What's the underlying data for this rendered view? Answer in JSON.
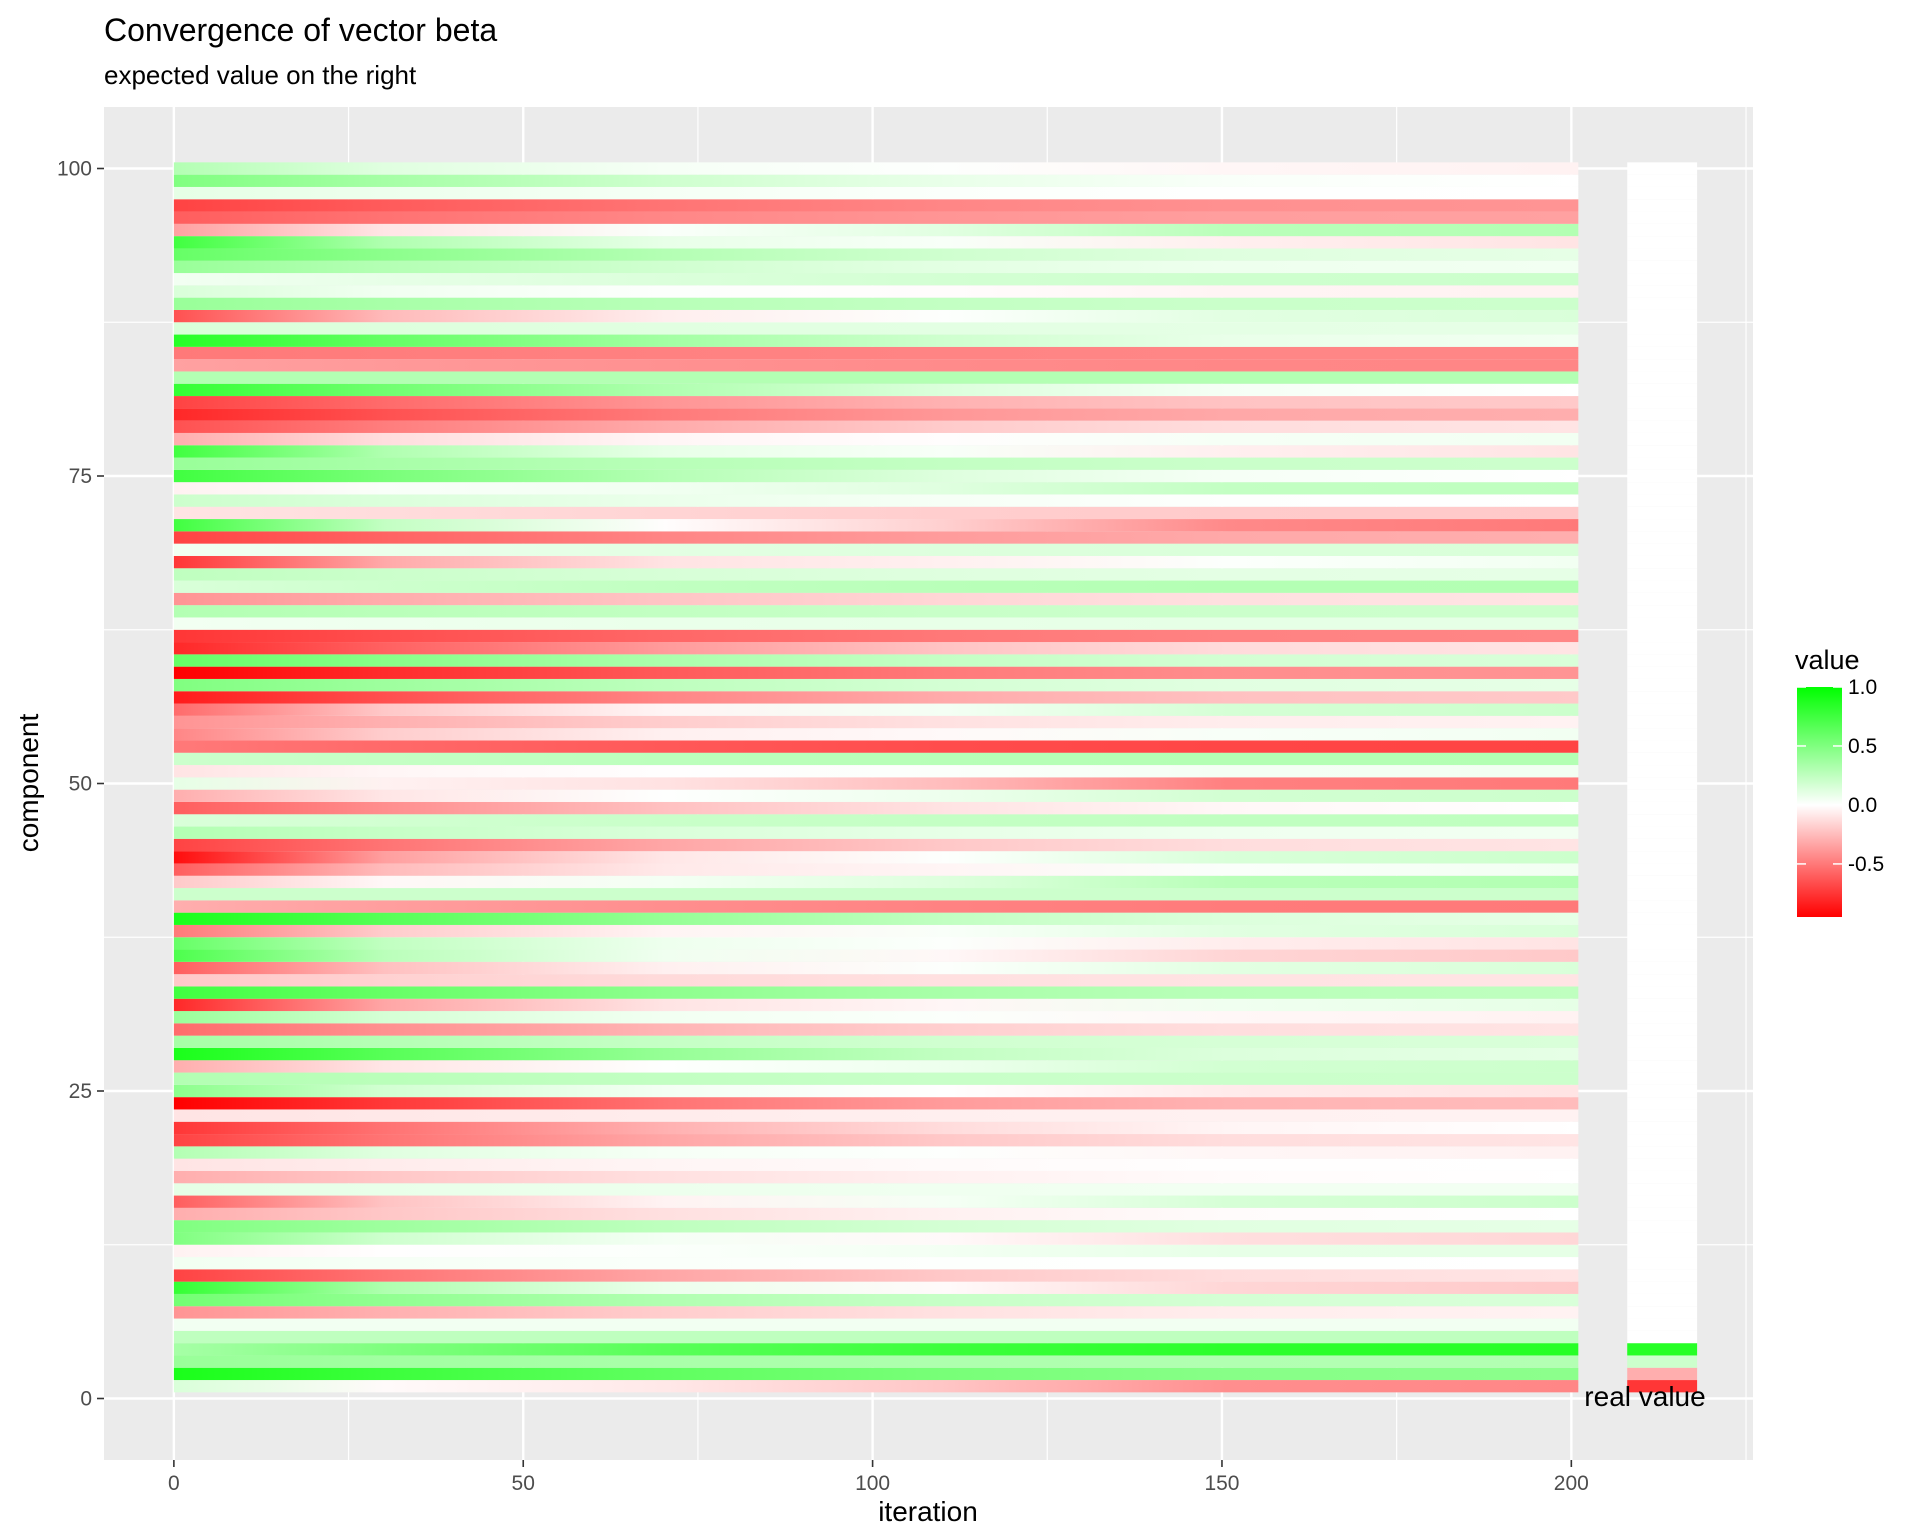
{
  "chart_data": {
    "type": "heatmap",
    "title": "Convergence of vector beta",
    "subtitle": "expected value on the right",
    "xlabel": "iteration",
    "ylabel": "component",
    "xlim": [
      -10,
      226
    ],
    "ylim": [
      -5,
      105
    ],
    "x_ticks": [
      "0",
      "50",
      "100",
      "150",
      "200"
    ],
    "x_tick_values": [
      0,
      50,
      100,
      150,
      200
    ],
    "y_ticks": [
      "0",
      "25",
      "50",
      "75",
      "100"
    ],
    "y_tick_values": [
      0,
      25,
      50,
      75,
      100
    ],
    "grid": true,
    "iterations": [
      0,
      201
    ],
    "real_value_x": [
      208,
      218
    ],
    "annotation": "real value",
    "legend": {
      "title": "value",
      "position": "right",
      "labels": [
        "1.0",
        "0.5",
        "0.0",
        "-0.5"
      ],
      "label_values": [
        1.0,
        0.5,
        0.0,
        -0.5
      ],
      "range": [
        -0.95,
        1.0
      ],
      "low_color": "#ff0000",
      "mid_color": "#ffffff",
      "high_color": "#00ff00"
    },
    "components": [
      1,
      2,
      3,
      4,
      5,
      6,
      7,
      8,
      9,
      10,
      11,
      12,
      13,
      14,
      15,
      16,
      17,
      18,
      19,
      20,
      21,
      22,
      23,
      24,
      25,
      26,
      27,
      28,
      29,
      30,
      31,
      32,
      33,
      34,
      35,
      36,
      37,
      38,
      39,
      40,
      41,
      42,
      43,
      44,
      45,
      46,
      47,
      48,
      49,
      50,
      51,
      52,
      53,
      54,
      55,
      56,
      57,
      58,
      59,
      60,
      61,
      62,
      63,
      64,
      65,
      66,
      67,
      68,
      69,
      70,
      71,
      72,
      73,
      74,
      75,
      76,
      77,
      78,
      79,
      80,
      81,
      82,
      83,
      84,
      85,
      86,
      87,
      88,
      89,
      90,
      91,
      92,
      93,
      94,
      95,
      96,
      97,
      98,
      99,
      100
    ],
    "start_values": [
      0.15,
      0.9,
      0.4,
      0.35,
      0.25,
      0.05,
      -0.4,
      0.55,
      0.8,
      -0.7,
      0.05,
      -0.05,
      0.5,
      0.5,
      -0.3,
      -0.6,
      0.1,
      -0.3,
      -0.1,
      0.3,
      -0.7,
      -0.75,
      -0.1,
      -0.95,
      0.45,
      0.3,
      -0.3,
      0.9,
      0.35,
      -0.55,
      0.4,
      -0.8,
      0.75,
      -0.2,
      -0.6,
      0.7,
      0.6,
      -0.5,
      0.9,
      -0.3,
      0.2,
      -0.2,
      -0.6,
      -0.9,
      -0.7,
      0.3,
      0.15,
      -0.6,
      -0.3,
      0.1,
      -0.1,
      0.2,
      -0.5,
      -0.45,
      -0.4,
      -0.55,
      -0.85,
      0.5,
      -0.95,
      0.6,
      -0.8,
      -0.75,
      0.05,
      0.3,
      -0.4,
      0.15,
      0.25,
      -0.75,
      0.05,
      -0.7,
      0.75,
      -0.1,
      0.2,
      -0.05,
      0.75,
      0.4,
      0.75,
      -0.3,
      -0.65,
      -0.8,
      -0.7,
      0.8,
      0.3,
      -0.35,
      -0.5,
      0.85,
      0.15,
      -0.65,
      0.4,
      0.15,
      0.05,
      0.4,
      0.6,
      0.75,
      -0.35,
      -0.6,
      -0.7,
      0.1,
      0.5,
      0.3
    ],
    "final_values": [
      -0.45,
      0.45,
      0.3,
      0.85,
      0.25,
      0.05,
      -0.05,
      0.15,
      -0.2,
      -0.1,
      0.0,
      0.1,
      -0.15,
      0.1,
      0.0,
      0.2,
      0.05,
      0.0,
      0.0,
      -0.05,
      -0.1,
      0.0,
      -0.05,
      -0.25,
      -0.1,
      0.2,
      0.2,
      0.1,
      0.15,
      -0.1,
      -0.05,
      0.1,
      0.25,
      -0.1,
      0.15,
      -0.2,
      -0.1,
      0.15,
      0.1,
      -0.5,
      0.2,
      0.3,
      0.05,
      0.2,
      -0.1,
      0.05,
      0.25,
      0.0,
      0.2,
      -0.5,
      0.05,
      0.3,
      -0.7,
      0.05,
      -0.05,
      0.2,
      -0.2,
      0.1,
      -0.4,
      0.15,
      -0.1,
      -0.45,
      0.1,
      0.2,
      -0.1,
      0.3,
      0.1,
      0.05,
      0.15,
      -0.3,
      -0.5,
      -0.2,
      0.0,
      0.25,
      0.0,
      0.2,
      -0.1,
      0.05,
      -0.1,
      -0.3,
      -0.2,
      0.0,
      0.3,
      -0.45,
      -0.45,
      0.05,
      0.1,
      0.15,
      0.2,
      -0.05,
      0.2,
      0.05,
      0.1,
      -0.1,
      0.3,
      -0.35,
      -0.4,
      0.0,
      0.0,
      -0.05
    ],
    "real_values": [
      -0.75,
      -0.3,
      0.2,
      0.85,
      0,
      0,
      0,
      0,
      0,
      0,
      0,
      0,
      0,
      0,
      0,
      0,
      0,
      0,
      0,
      0,
      0,
      0,
      0,
      0,
      0,
      0,
      0,
      0,
      0,
      0,
      0,
      0,
      0,
      0,
      0,
      0,
      0,
      0,
      0,
      0,
      0,
      0,
      0,
      0,
      0,
      0,
      0,
      0,
      0,
      0,
      0,
      0,
      0,
      0,
      0,
      0,
      0,
      0,
      0,
      0,
      0,
      0,
      0,
      0,
      0,
      0,
      0,
      0,
      0,
      0,
      0,
      0,
      0,
      0,
      0,
      0,
      0,
      0,
      0,
      0,
      0,
      0,
      0,
      0,
      0,
      0,
      0,
      0,
      0,
      0,
      0,
      0,
      0,
      0,
      0,
      0,
      0,
      0,
      0,
      0,
      0
    ]
  }
}
